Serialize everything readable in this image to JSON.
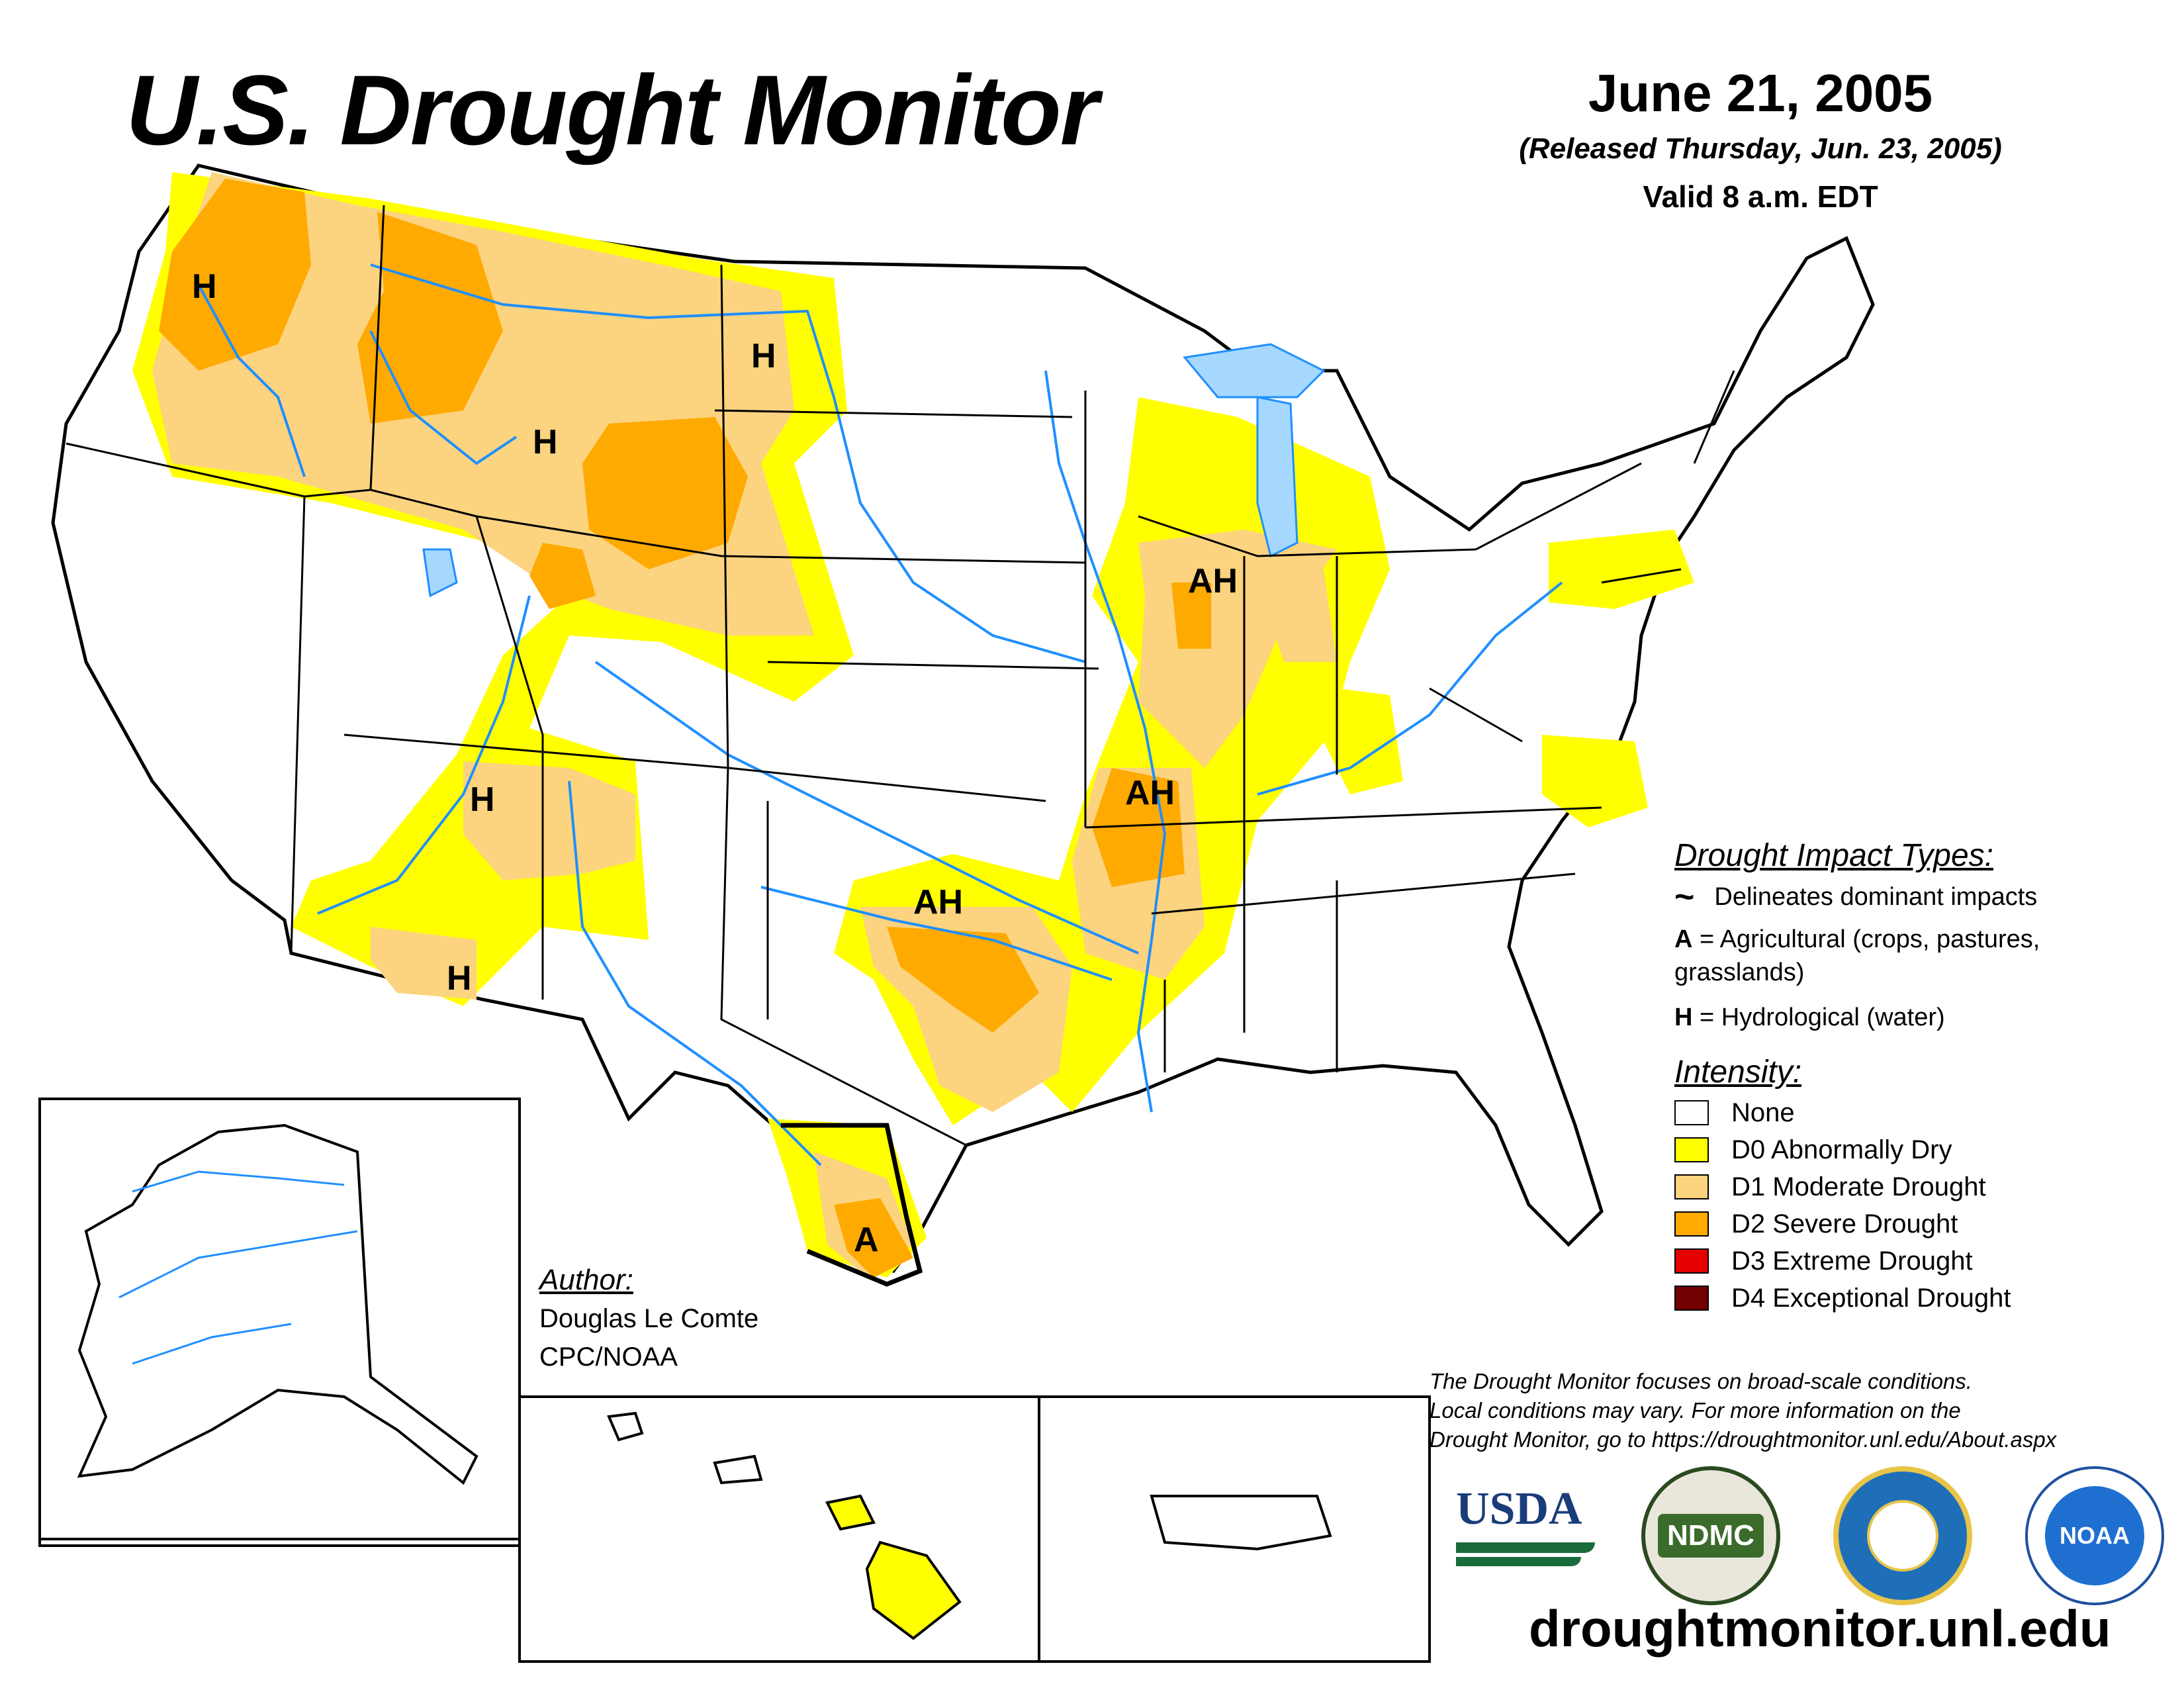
{
  "title": "U.S. Drought Monitor",
  "date": "June 21, 2005",
  "released": "(Released Thursday, Jun. 23, 2005)",
  "valid": "Valid 8 a.m. EDT",
  "impact_types": {
    "heading": "Drought Impact Types:",
    "delineates": "Delineates dominant impacts",
    "agricultural_key": "A",
    "agricultural_text": "= Agricultural (crops, pastures,",
    "agricultural_text2": "grasslands)",
    "hydrological_key": "H",
    "hydrological_text": "= Hydrological (water)"
  },
  "intensity": {
    "heading": "Intensity:",
    "categories": [
      {
        "label": "None",
        "color": "#ffffff"
      },
      {
        "label": "D0 Abnormally Dry",
        "color": "#ffff00"
      },
      {
        "label": "D1 Moderate Drought",
        "color": "#fcd37f"
      },
      {
        "label": "D2 Severe Drought",
        "color": "#ffaa00"
      },
      {
        "label": "D3 Extreme Drought",
        "color": "#e60000"
      },
      {
        "label": "D4 Exceptional Drought",
        "color": "#730000"
      }
    ]
  },
  "author": {
    "heading": "Author:",
    "name": "Douglas Le Comte",
    "org": "CPC/NOAA"
  },
  "note": {
    "line1": "The Drought Monitor focuses on broad-scale conditions.",
    "line2": "Local conditions may vary. For more information on the",
    "line3": "Drought Monitor, go to https://droughtmonitor.unl.edu/About.aspx"
  },
  "logos": {
    "usda": "USDA",
    "ndmc": "NDMC",
    "noaa": "NOAA"
  },
  "url": "droughtmonitor.unl.edu",
  "map_labels": {
    "wa": "H",
    "nd": "H",
    "mt_wy": "H",
    "ut": "H",
    "az": "H",
    "il": "AH",
    "ar": "AH",
    "ok": "AH",
    "tx": "A"
  },
  "colors": {
    "water": "#1f8fff",
    "lake_fill": "#a6d8ff",
    "d0": "#ffff00",
    "d1": "#fcd37f",
    "d2": "#ffaa00"
  }
}
